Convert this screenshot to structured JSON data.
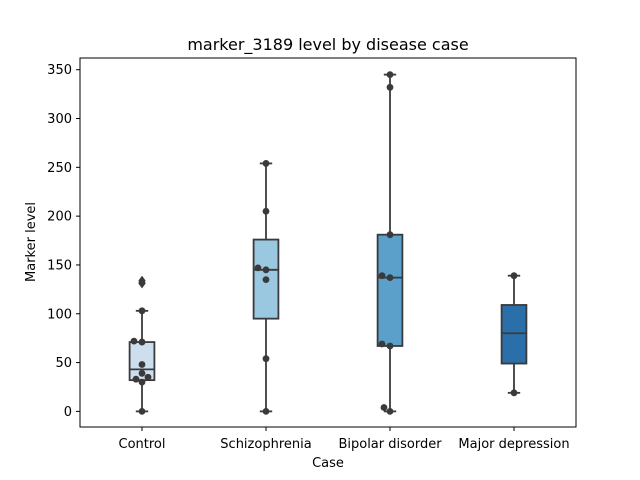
{
  "chart_data": {
    "type": "box",
    "title": "marker_3189 level by disease case",
    "xlabel": "Case",
    "ylabel": "Marker level",
    "categories": [
      "Control",
      "Schizophrenia",
      "Bipolar disorder",
      "Major depression"
    ],
    "ylim": [
      -16,
      362
    ],
    "yticks": [
      0,
      50,
      100,
      150,
      200,
      250,
      300,
      350
    ],
    "grid": false,
    "colors": [
      "#cddeef",
      "#9ac8e0",
      "#5b9fcb",
      "#2b6faa"
    ],
    "boxes": [
      {
        "category": "Control",
        "whislo": 0,
        "q1": 32,
        "median": 43,
        "q3": 71,
        "whishi": 103,
        "outliers": [
          131,
          134
        ]
      },
      {
        "category": "Schizophrenia",
        "whislo": 0,
        "q1": 95,
        "median": 145,
        "q3": 176,
        "whishi": 254,
        "outliers": []
      },
      {
        "category": "Bipolar disorder",
        "whislo": 0,
        "q1": 67,
        "median": 137,
        "q3": 181,
        "whishi": 345,
        "outliers": []
      },
      {
        "category": "Major depression",
        "whislo": 19,
        "q1": 49,
        "median": 80,
        "q3": 109,
        "whishi": 139,
        "outliers": []
      }
    ],
    "points": [
      {
        "category": "Control",
        "values": [
          0,
          30,
          33,
          35,
          39,
          48,
          71,
          72,
          103,
          132
        ]
      },
      {
        "category": "Schizophrenia",
        "values": [
          0,
          54,
          135,
          145,
          147,
          205,
          254
        ]
      },
      {
        "category": "Bipolar disorder",
        "values": [
          0,
          4,
          67,
          69,
          137,
          139,
          181,
          332,
          345
        ]
      },
      {
        "category": "Major depression",
        "values": [
          19,
          139
        ]
      }
    ]
  }
}
